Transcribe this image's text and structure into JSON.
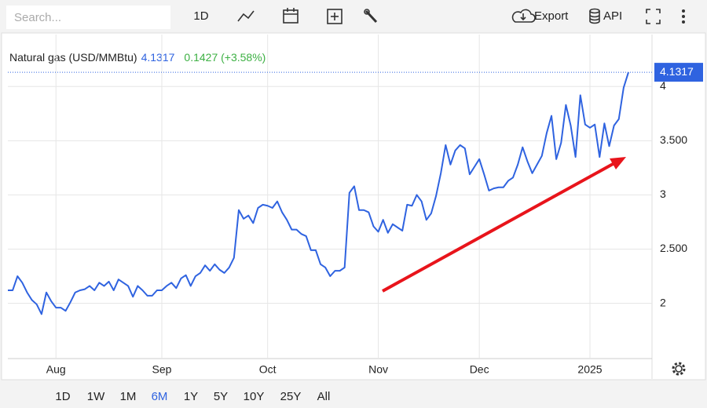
{
  "toolbar": {
    "search_placeholder": "Search...",
    "interval": "1D",
    "export": "Export",
    "api": "API"
  },
  "range_buttons": [
    "1D",
    "1W",
    "1M",
    "6M",
    "1Y",
    "5Y",
    "10Y",
    "25Y",
    "All"
  ],
  "active_range": "6M",
  "chart_data": {
    "type": "line",
    "title": "Natural gas (USD/MMBtu)",
    "change": "0.1427 (+3.58%)",
    "categories": [
      null,
      null,
      null,
      null,
      null,
      null,
      null,
      null,
      null,
      null,
      "Aug",
      null,
      null,
      null,
      null,
      null,
      null,
      null,
      null,
      null,
      null,
      null,
      null,
      null,
      null,
      null,
      null,
      null,
      null,
      null,
      null,
      null,
      "Sep",
      null,
      null,
      null,
      null,
      null,
      null,
      null,
      null,
      null,
      null,
      null,
      null,
      null,
      null,
      null,
      null,
      null,
      null,
      null,
      null,
      null,
      "Oct",
      null,
      null,
      null,
      null,
      null,
      null,
      null,
      null,
      null,
      null,
      null,
      null,
      null,
      null,
      null,
      null,
      null,
      null,
      null,
      null,
      null,
      null,
      "Nov",
      null,
      null,
      null,
      null,
      null,
      null,
      null,
      null,
      null,
      null,
      null,
      null,
      null,
      null,
      null,
      null,
      null,
      null,
      null,
      null,
      "Dec",
      null,
      null,
      null,
      null,
      null,
      null,
      null,
      null,
      null,
      null,
      null,
      null,
      null,
      null,
      null,
      null,
      null,
      null,
      null,
      null,
      null,
      null,
      "2025",
      null,
      null,
      null,
      null,
      null,
      null,
      null,
      null
    ],
    "series": [
      {
        "name": "Natural gas",
        "color": "#2f63e0",
        "values": [
          2.12,
          2.12,
          2.25,
          2.19,
          2.1,
          2.03,
          1.99,
          1.9,
          2.1,
          2.02,
          1.96,
          1.96,
          1.93,
          2.01,
          2.1,
          2.12,
          2.13,
          2.16,
          2.12,
          2.19,
          2.16,
          2.2,
          2.12,
          2.22,
          2.19,
          2.16,
          2.06,
          2.16,
          2.12,
          2.07,
          2.07,
          2.12,
          2.12,
          2.16,
          2.19,
          2.14,
          2.23,
          2.26,
          2.16,
          2.25,
          2.28,
          2.35,
          2.3,
          2.36,
          2.31,
          2.28,
          2.33,
          2.42,
          2.86,
          2.78,
          2.81,
          2.74,
          2.88,
          2.91,
          2.9,
          2.88,
          2.94,
          2.84,
          2.77,
          2.68,
          2.68,
          2.64,
          2.62,
          2.49,
          2.49,
          2.36,
          2.33,
          2.25,
          2.3,
          2.3,
          2.33,
          3.02,
          3.08,
          2.86,
          2.86,
          2.84,
          2.71,
          2.66,
          2.77,
          2.65,
          2.73,
          2.7,
          2.67,
          2.91,
          2.9,
          3.0,
          2.94,
          2.77,
          2.83,
          2.99,
          3.2,
          3.46,
          3.28,
          3.41,
          3.46,
          3.43,
          3.19,
          3.26,
          3.33,
          3.19,
          3.04,
          3.06,
          3.07,
          3.07,
          3.13,
          3.16,
          3.28,
          3.44,
          3.31,
          3.2,
          3.28,
          3.36,
          3.57,
          3.73,
          3.33,
          3.48,
          3.83,
          3.64,
          3.35,
          3.92,
          3.65,
          3.62,
          3.65,
          3.35,
          3.66,
          3.45,
          3.64,
          3.7,
          3.99,
          4.1317
        ]
      }
    ],
    "ylim": [
      1.49,
      4.48
    ],
    "yticks": [
      2,
      {
        "value": 2.5,
        "label": "2.500"
      },
      3,
      {
        "value": 3.5,
        "label": "3.500"
      },
      4
    ],
    "grid": true
  }
}
